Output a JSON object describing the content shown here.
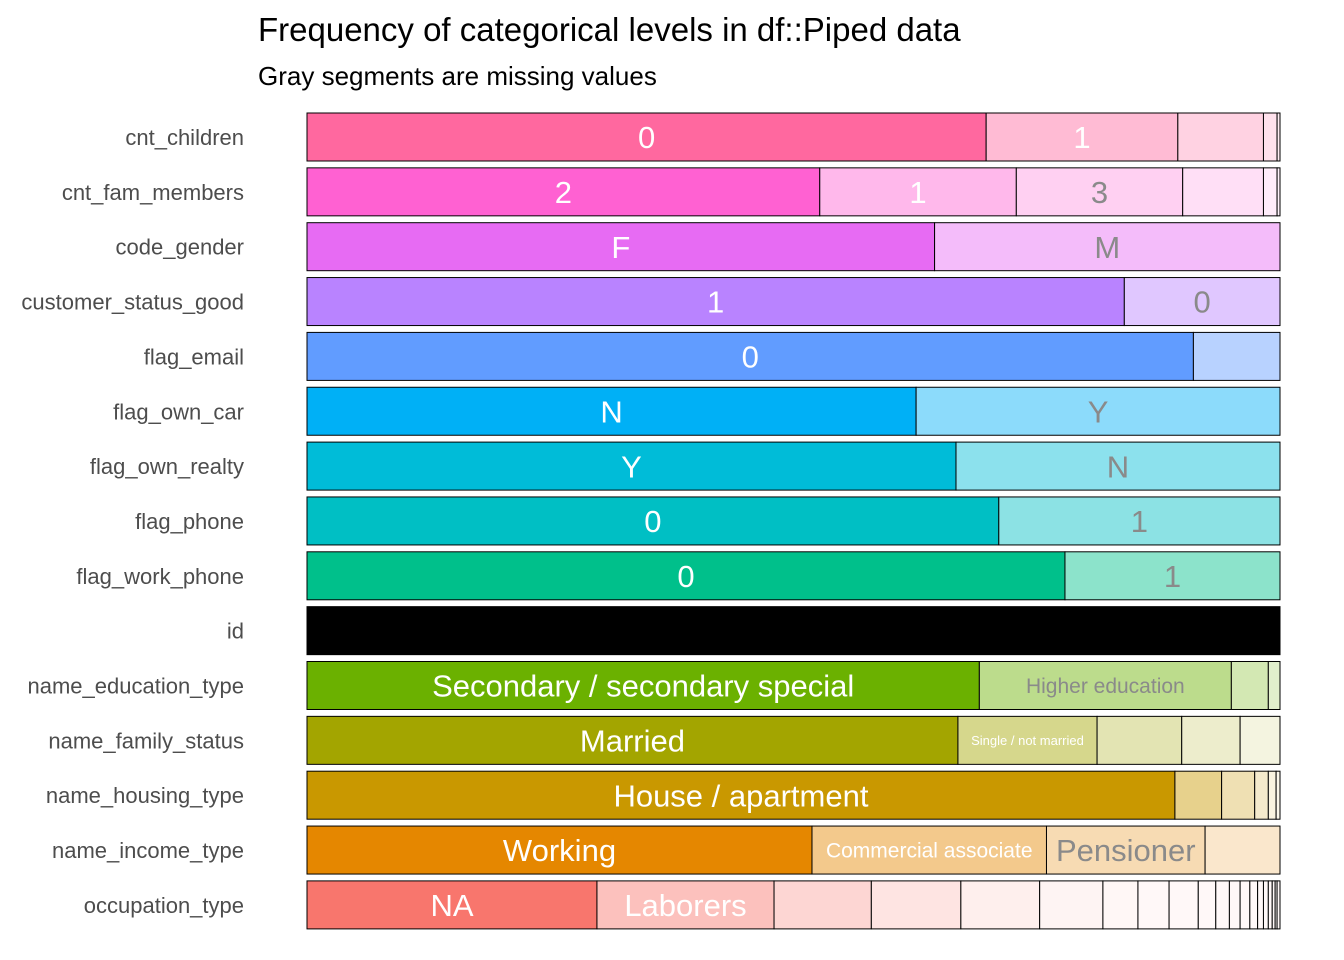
{
  "chart_data": {
    "type": "bar",
    "title": "Frequency of categorical levels in df::Piped data",
    "subtitle": "Gray segments are missing values",
    "xlabel": "",
    "ylabel": "",
    "xlim": [
      0,
      1
    ],
    "grid": false,
    "legend": "none",
    "rows": [
      {
        "variable": "cnt_children",
        "color": "#FF689F",
        "segments": [
          {
            "label": "0",
            "value": 0.698
          },
          {
            "label": "1",
            "value": 0.197
          },
          {
            "label": "",
            "value": 0.088
          },
          {
            "label": "",
            "value": 0.014
          },
          {
            "label": "",
            "value": 0.003
          }
        ]
      },
      {
        "variable": "cnt_fam_members",
        "color": "#FF61D2",
        "segments": [
          {
            "label": "2",
            "value": 0.527
          },
          {
            "label": "1",
            "value": 0.202
          },
          {
            "label": "3",
            "value": 0.171
          },
          {
            "label": "",
            "value": 0.083
          },
          {
            "label": "",
            "value": 0.014
          },
          {
            "label": "",
            "value": 0.003
          }
        ]
      },
      {
        "variable": "code_gender",
        "color": "#E76BF3",
        "segments": [
          {
            "label": "F",
            "value": 0.645
          },
          {
            "label": "M",
            "value": 0.355
          }
        ]
      },
      {
        "variable": "customer_status_good",
        "color": "#B983FF",
        "segments": [
          {
            "label": "1",
            "value": 0.84
          },
          {
            "label": "0",
            "value": 0.16
          }
        ]
      },
      {
        "variable": "flag_email",
        "color": "#619CFF",
        "segments": [
          {
            "label": "0",
            "value": 0.911
          },
          {
            "label": "",
            "value": 0.089
          }
        ]
      },
      {
        "variable": "flag_own_car",
        "color": "#00B0F6",
        "segments": [
          {
            "label": "N",
            "value": 0.626
          },
          {
            "label": "Y",
            "value": 0.374
          }
        ]
      },
      {
        "variable": "flag_own_realty",
        "color": "#00BCD8",
        "segments": [
          {
            "label": "Y",
            "value": 0.667
          },
          {
            "label": "N",
            "value": 0.333
          }
        ]
      },
      {
        "variable": "flag_phone",
        "color": "#00BFC4",
        "segments": [
          {
            "label": "0",
            "value": 0.711
          },
          {
            "label": "1",
            "value": 0.289
          }
        ]
      },
      {
        "variable": "flag_work_phone",
        "color": "#00C08B",
        "segments": [
          {
            "label": "0",
            "value": 0.779
          },
          {
            "label": "1",
            "value": 0.221
          }
        ]
      },
      {
        "variable": "id",
        "color": "#000000",
        "segments": [
          {
            "label": "",
            "value": 1.0
          }
        ]
      },
      {
        "variable": "name_education_type",
        "color": "#6BB100",
        "segments": [
          {
            "label": "Secondary / secondary special",
            "value": 0.691
          },
          {
            "label": "Higher education",
            "value": 0.259
          },
          {
            "label": "",
            "value": 0.038
          },
          {
            "label": "",
            "value": 0.012
          }
        ]
      },
      {
        "variable": "name_family_status",
        "color": "#A3A500",
        "segments": [
          {
            "label": "Married",
            "value": 0.669
          },
          {
            "label": "Single / not married",
            "value": 0.143
          },
          {
            "label": "",
            "value": 0.087
          },
          {
            "label": "",
            "value": 0.06
          },
          {
            "label": "",
            "value": 0.041
          }
        ]
      },
      {
        "variable": "name_housing_type",
        "color": "#C99800",
        "segments": [
          {
            "label": "House / apartment",
            "value": 0.892
          },
          {
            "label": "",
            "value": 0.048
          },
          {
            "label": "",
            "value": 0.034
          },
          {
            "label": "",
            "value": 0.014
          },
          {
            "label": "",
            "value": 0.008
          },
          {
            "label": "",
            "value": 0.004
          }
        ]
      },
      {
        "variable": "name_income_type",
        "color": "#E58700",
        "segments": [
          {
            "label": "Working",
            "value": 0.519
          },
          {
            "label": "Commercial associate",
            "value": 0.241
          },
          {
            "label": "Pensioner",
            "value": 0.163
          },
          {
            "label": "",
            "value": 0.077
          }
        ]
      },
      {
        "variable": "occupation_type",
        "color": "#F8766D",
        "segments": [
          {
            "label": "NA",
            "value": 0.298
          },
          {
            "label": "Laborers",
            "value": 0.182
          },
          {
            "label": "",
            "value": 0.1
          },
          {
            "label": "",
            "value": 0.092
          },
          {
            "label": "",
            "value": 0.081
          },
          {
            "label": "",
            "value": 0.065
          },
          {
            "label": "",
            "value": 0.036
          },
          {
            "label": "",
            "value": 0.032
          },
          {
            "label": "",
            "value": 0.03
          },
          {
            "label": "",
            "value": 0.018
          },
          {
            "label": "",
            "value": 0.014
          },
          {
            "label": "",
            "value": 0.011
          },
          {
            "label": "",
            "value": 0.01
          },
          {
            "label": "",
            "value": 0.008
          },
          {
            "label": "",
            "value": 0.006
          },
          {
            "label": "",
            "value": 0.005
          },
          {
            "label": "",
            "value": 0.004
          },
          {
            "label": "",
            "value": 0.003
          },
          {
            "label": "",
            "value": 0.002
          },
          {
            "label": "",
            "value": 0.003
          }
        ]
      }
    ]
  }
}
